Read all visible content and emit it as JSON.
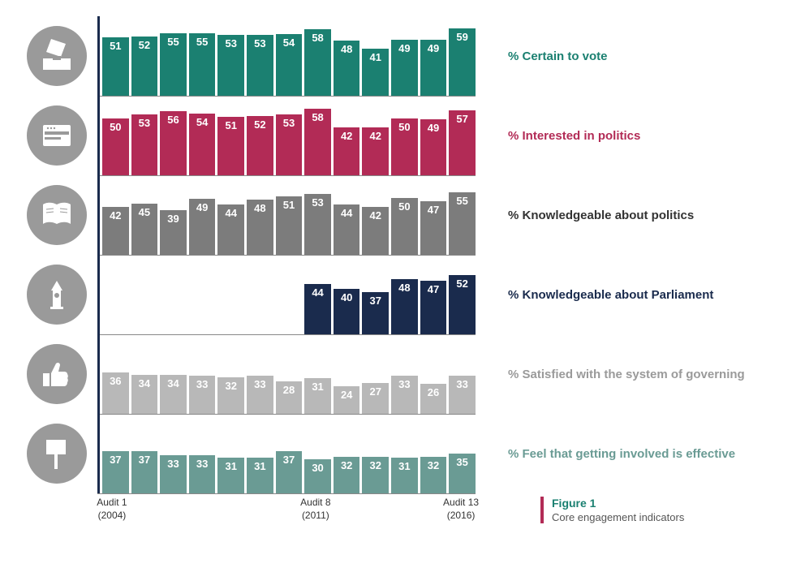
{
  "chart": {
    "max_value": 70,
    "bar_label_fontsize": 13,
    "row_label_fontsize": 15,
    "background_color": "#ffffff",
    "axis_border_color": "#1a2b4d",
    "series": [
      {
        "label": "% Certain to vote",
        "label_color": "#1b8071",
        "bar_color": "#1b8071",
        "icon": "ballot",
        "values": [
          51,
          52,
          55,
          55,
          53,
          53,
          54,
          58,
          48,
          41,
          49,
          49,
          59
        ]
      },
      {
        "label": "% Interested in politics",
        "label_color": "#b22b56",
        "bar_color": "#b22b56",
        "icon": "browser",
        "values": [
          50,
          53,
          56,
          54,
          51,
          52,
          53,
          58,
          42,
          42,
          50,
          49,
          57
        ]
      },
      {
        "label": "% Knowledgeable about politics",
        "label_color": "#333333",
        "bar_color": "#7c7c7c",
        "icon": "book",
        "values": [
          42,
          45,
          39,
          49,
          44,
          48,
          51,
          53,
          44,
          42,
          50,
          47,
          55
        ]
      },
      {
        "label": "% Knowledgeable about Parliament",
        "label_color": "#1a2b4d",
        "bar_color": "#1a2b4d",
        "icon": "tower",
        "values": [
          null,
          null,
          null,
          null,
          null,
          null,
          null,
          44,
          40,
          37,
          48,
          47,
          52
        ]
      },
      {
        "label": "% Satisfied with the system of governing",
        "label_color": "#9a9a9a",
        "bar_color": "#b8b8b8",
        "icon": "thumb",
        "values": [
          36,
          34,
          34,
          33,
          32,
          33,
          28,
          31,
          24,
          27,
          33,
          26,
          33
        ]
      },
      {
        "label": "% Feel that getting involved is effective",
        "label_color": "#6a9b94",
        "bar_color": "#6a9b94",
        "icon": "sign",
        "values": [
          37,
          37,
          33,
          33,
          31,
          31,
          37,
          30,
          32,
          32,
          31,
          32,
          35
        ]
      }
    ],
    "axis_labels": [
      {
        "pos": 0,
        "line1": "Audit 1",
        "line2": "(2004)"
      },
      {
        "pos": 7,
        "line1": "Audit 8",
        "line2": "(2011)"
      },
      {
        "pos": 12,
        "line1": "Audit 13",
        "line2": "(2016)"
      }
    ]
  },
  "figure": {
    "title": "Figure 1",
    "subtitle": "Core engagement indicators",
    "title_color": "#1b8071",
    "border_color": "#b22b56"
  }
}
